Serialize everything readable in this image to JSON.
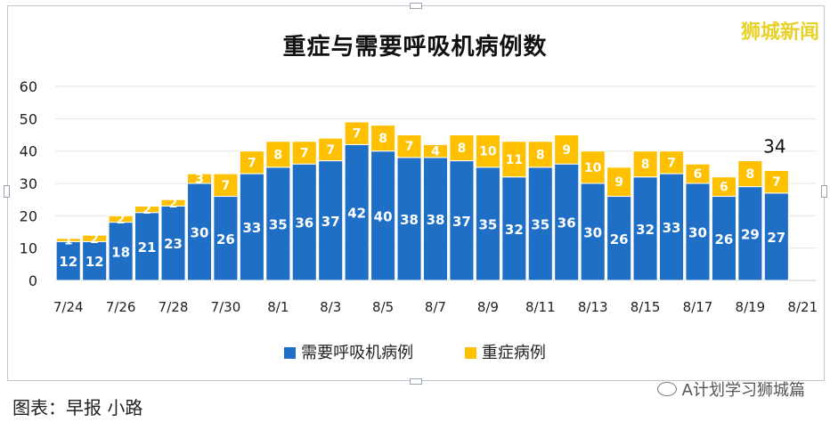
{
  "chart_data": {
    "type": "bar",
    "stacked": true,
    "title": "重症与需要呼吸机病例数",
    "categories": [
      "7/24",
      "7/25",
      "7/26",
      "7/27",
      "7/28",
      "7/29",
      "7/30",
      "7/31",
      "8/1",
      "8/2",
      "8/3",
      "8/4",
      "8/5",
      "8/6",
      "8/7",
      "8/8",
      "8/9",
      "8/10",
      "8/11",
      "8/12",
      "8/13",
      "8/14",
      "8/15",
      "8/16",
      "8/17",
      "8/18",
      "8/19",
      "8/20"
    ],
    "x_tick_labels": [
      "7/24",
      "7/26",
      "7/28",
      "7/30",
      "8/1",
      "8/3",
      "8/5",
      "8/7",
      "8/9",
      "8/11",
      "8/13",
      "8/15",
      "8/17",
      "8/19",
      "8/21"
    ],
    "series": [
      {
        "name": "需要呼吸机病例",
        "color": "#1F6FC6",
        "values": [
          12,
          12,
          18,
          21,
          23,
          30,
          26,
          33,
          35,
          36,
          37,
          42,
          40,
          38,
          38,
          37,
          35,
          32,
          35,
          36,
          30,
          26,
          32,
          33,
          30,
          26,
          29,
          27
        ]
      },
      {
        "name": "重症病例",
        "color": "#FFC000",
        "values": [
          1,
          2,
          2,
          2,
          2,
          3,
          7,
          7,
          8,
          7,
          7,
          7,
          8,
          7,
          4,
          8,
          10,
          11,
          8,
          9,
          10,
          9,
          8,
          7,
          6,
          6,
          8,
          7
        ]
      }
    ],
    "yticks": [
      0,
      10,
      20,
      30,
      40,
      50,
      60
    ],
    "ylim": [
      0,
      60
    ],
    "annotation": "34",
    "legend_position": "bottom"
  },
  "watermark_top": "狮城新闻",
  "caption": "图表：早报 小路",
  "wechat_tag": "A计划学习狮城篇"
}
